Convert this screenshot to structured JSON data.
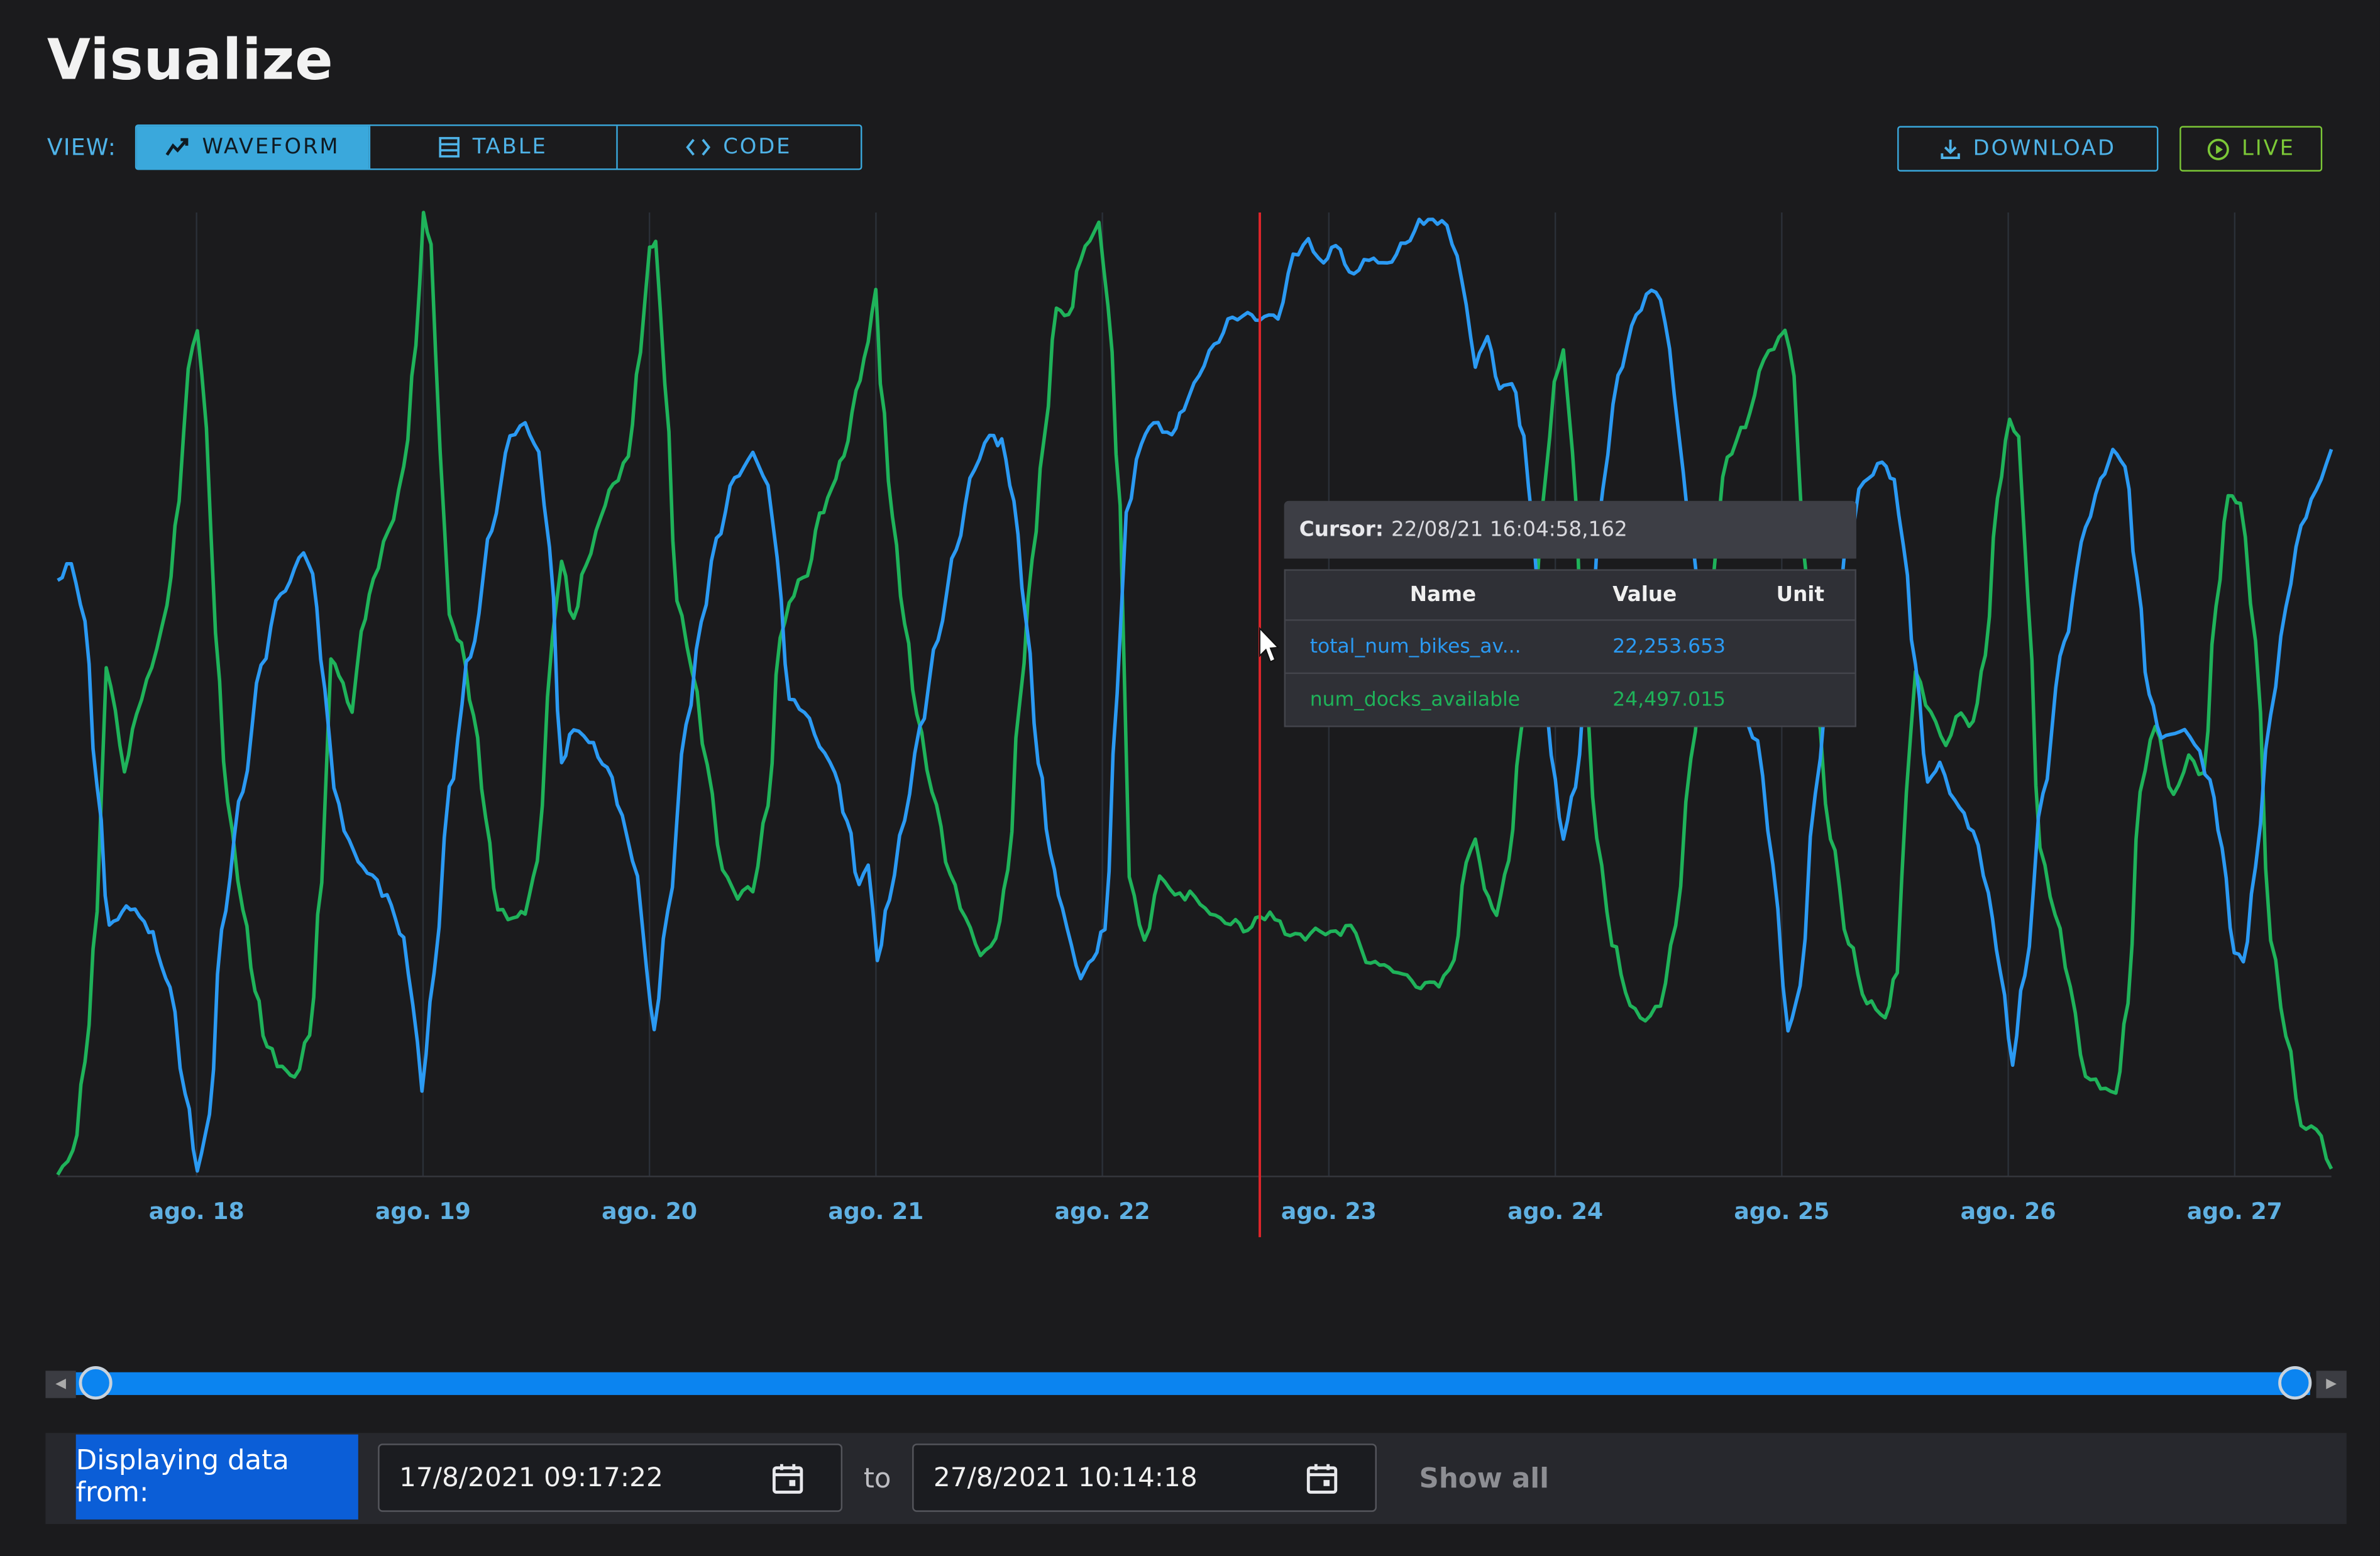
{
  "header": {
    "title": "Visualize"
  },
  "view": {
    "label": "VIEW:",
    "tabs": [
      {
        "label": "WAVEFORM",
        "icon": "trend-line-icon",
        "active": true
      },
      {
        "label": "TABLE",
        "icon": "table-icon",
        "active": false
      },
      {
        "label": "CODE",
        "icon": "code-brackets-icon",
        "active": false
      }
    ]
  },
  "actions": {
    "download_label": "DOWNLOAD",
    "live_label": "LIVE"
  },
  "colors": {
    "series_bikes": "#2b9af3",
    "series_docks": "#1fb35a",
    "cursor": "#e0252a",
    "accent": "#3aa8dc",
    "live": "#7cc837"
  },
  "tooltip": {
    "cursor_label": "Cursor:",
    "cursor_value": "22/08/21 16:04:58,162",
    "headers": {
      "name": "Name",
      "value": "Value",
      "unit": "Unit"
    },
    "rows": [
      {
        "name": "total_num_bikes_av...",
        "value": "22,253.653",
        "unit": ""
      },
      {
        "name": "num_docks_available",
        "value": "24,497.015",
        "unit": ""
      }
    ]
  },
  "chart_data": {
    "type": "line",
    "x_tick_labels": [
      "ago. 18",
      "ago. 19",
      "ago. 20",
      "ago. 21",
      "ago. 22",
      "ago. 23",
      "ago. 24",
      "ago. 25",
      "ago. 26",
      "ago. 27"
    ],
    "x_range": [
      "17/8/2021 09:17:22",
      "27/8/2021 10:14:18"
    ],
    "cursor_position": "22/08/21 16:04:58,162",
    "grid": true,
    "series": [
      {
        "name": "total_num_bikes_av...",
        "color": "#2b9af3"
      },
      {
        "name": "num_docks_available",
        "color": "#1fb35a"
      }
    ]
  },
  "range": {
    "label": "Displaying data from:",
    "from": "17/8/2021 09:17:22",
    "to_label": "to",
    "to": "27/8/2021 10:14:18",
    "show_all_label": "Show all"
  }
}
